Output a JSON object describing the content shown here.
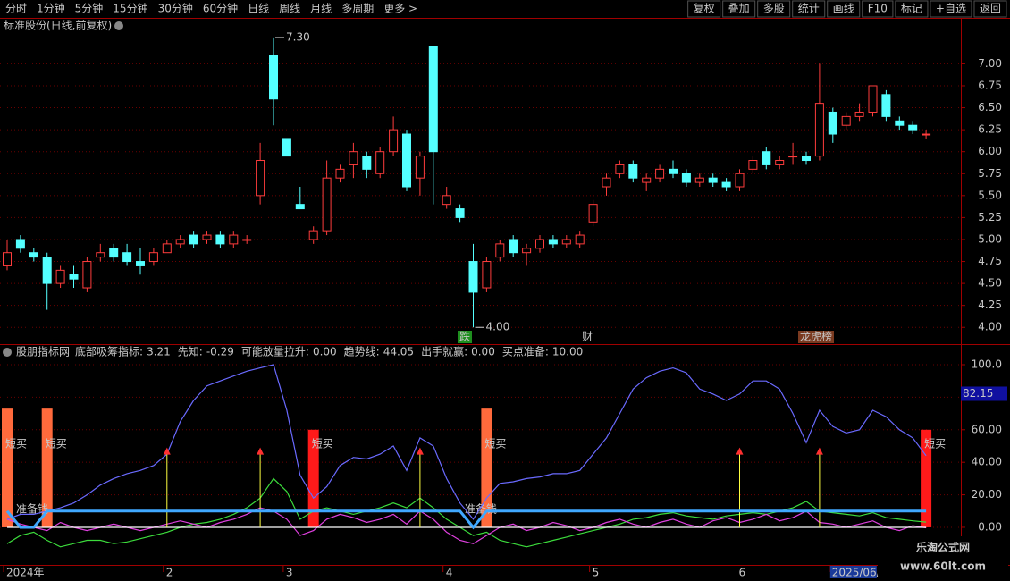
{
  "toolbar": {
    "left": [
      "分时",
      "1分钟",
      "5分钟",
      "15分钟",
      "30分钟",
      "60分钟",
      "日线",
      "周线",
      "月线",
      "多周期",
      "更多 >"
    ],
    "right": [
      "复权",
      "叠加",
      "多股",
      "统计",
      "画线",
      "F10",
      "标记",
      "+自选",
      "返回"
    ]
  },
  "watermark": {
    "title": "乐淘公式网",
    "url": "www.60lt.com"
  },
  "chart_data": [
    {
      "type": "candlestick",
      "title": "标准股份(日线,前复权)",
      "open": [
        4.7,
        5.0,
        4.85,
        4.8,
        4.5,
        4.6,
        4.45,
        4.8,
        4.9,
        4.85,
        4.75,
        4.75,
        4.85,
        4.95,
        5.05,
        5.0,
        5.05,
        4.95,
        5.0,
        5.5,
        7.1,
        6.15,
        5.4,
        5.0,
        5.1,
        5.7,
        5.85,
        5.95,
        5.75,
        6.0,
        6.2,
        5.7,
        7.2,
        5.4,
        5.35,
        4.75,
        4.45,
        4.8,
        5.0,
        4.85,
        4.9,
        5.0,
        4.95,
        4.95,
        5.2,
        5.6,
        5.75,
        5.85,
        5.65,
        5.7,
        5.8,
        5.75,
        5.65,
        5.7,
        5.65,
        5.6,
        5.8,
        6.0,
        5.85,
        5.95,
        5.95,
        5.95,
        6.45,
        6.3,
        6.4,
        6.45,
        6.65,
        6.35,
        6.3,
        6.2
      ],
      "high": [
        5.0,
        5.05,
        4.9,
        4.85,
        4.7,
        4.7,
        4.8,
        4.95,
        4.95,
        4.95,
        4.9,
        4.9,
        5.0,
        5.05,
        5.1,
        5.1,
        5.1,
        5.1,
        5.05,
        6.1,
        7.3,
        6.15,
        5.6,
        5.15,
        5.9,
        5.85,
        6.1,
        6.0,
        6.05,
        6.4,
        6.25,
        6.0,
        7.2,
        5.6,
        5.4,
        4.95,
        4.8,
        5.0,
        5.05,
        4.95,
        5.05,
        5.05,
        5.05,
        5.1,
        5.45,
        5.75,
        5.9,
        5.9,
        5.75,
        5.85,
        5.9,
        5.8,
        5.75,
        5.75,
        5.7,
        5.8,
        5.95,
        6.05,
        5.95,
        6.1,
        6.0,
        7.0,
        6.5,
        6.45,
        6.55,
        6.75,
        6.7,
        6.4,
        6.35,
        6.25
      ],
      "low": [
        4.65,
        4.85,
        4.75,
        4.2,
        4.45,
        4.45,
        4.4,
        4.75,
        4.75,
        4.7,
        4.6,
        4.7,
        4.85,
        4.9,
        4.9,
        4.95,
        4.9,
        4.9,
        4.95,
        5.4,
        6.3,
        5.95,
        5.35,
        4.95,
        5.05,
        5.65,
        5.7,
        5.7,
        5.7,
        5.95,
        5.55,
        5.5,
        5.4,
        5.35,
        5.2,
        4.0,
        4.4,
        4.75,
        4.8,
        4.7,
        4.85,
        4.9,
        4.9,
        4.9,
        5.15,
        5.5,
        5.7,
        5.65,
        5.55,
        5.65,
        5.7,
        5.6,
        5.6,
        5.6,
        5.55,
        5.55,
        5.75,
        5.8,
        5.8,
        5.85,
        5.85,
        5.9,
        6.1,
        6.25,
        6.35,
        6.4,
        6.35,
        6.25,
        6.2,
        6.15
      ],
      "close": [
        4.85,
        4.9,
        4.8,
        4.5,
        4.65,
        4.55,
        4.75,
        4.85,
        4.8,
        4.75,
        4.7,
        4.85,
        4.95,
        5.0,
        4.95,
        5.05,
        4.95,
        5.05,
        5.0,
        5.9,
        6.6,
        5.95,
        5.35,
        5.1,
        5.7,
        5.8,
        6.0,
        5.8,
        6.0,
        6.25,
        5.6,
        5.95,
        6.0,
        5.5,
        5.25,
        4.4,
        4.75,
        4.95,
        4.85,
        4.9,
        5.0,
        4.95,
        5.0,
        5.05,
        5.4,
        5.7,
        5.85,
        5.7,
        5.7,
        5.8,
        5.75,
        5.65,
        5.7,
        5.65,
        5.6,
        5.75,
        5.9,
        5.85,
        5.9,
        5.95,
        5.9,
        6.55,
        6.2,
        6.4,
        6.45,
        6.75,
        6.4,
        6.3,
        6.25,
        6.2
      ],
      "up_color": "#ff3c3c",
      "down_color": "#54ffff",
      "ylim": [
        3.86,
        7.34
      ],
      "yticks": [
        {
          "value": 4,
          "label": "4.00"
        },
        {
          "value": 4.25,
          "label": "4.25"
        },
        {
          "value": 4.5,
          "label": "4.50"
        },
        {
          "value": 4.75,
          "label": "4.75"
        },
        {
          "value": 5,
          "label": "5.00"
        },
        {
          "value": 5.25,
          "label": "5.25"
        },
        {
          "value": 5.5,
          "label": "5.50"
        },
        {
          "value": 5.75,
          "label": "5.75"
        },
        {
          "value": 6,
          "label": "6.00"
        },
        {
          "value": 6.25,
          "label": "6.25"
        },
        {
          "value": 6.5,
          "label": "6.50"
        },
        {
          "value": 6.75,
          "label": "6.75"
        },
        {
          "value": 7,
          "label": "7.00"
        }
      ],
      "grid": true,
      "annotations": [
        {
          "value": 7.3,
          "label": "7.30"
        },
        {
          "value": 4,
          "label": "4.00"
        }
      ],
      "events": [
        "跌",
        "财",
        "龙虎榜"
      ]
    },
    {
      "type": "line",
      "title": "股朋指标网",
      "series": [
        {
          "name": "底部吸筹指标:",
          "legend_value": "3.21",
          "color": "#3cdc3c",
          "values": [
            -10,
            -5,
            -3,
            -8,
            -12,
            -10,
            -8,
            -8,
            -10,
            -9,
            -7,
            -5,
            -3,
            0,
            2,
            3,
            5,
            8,
            12,
            18,
            30,
            22,
            5,
            10,
            12,
            10,
            8,
            10,
            12,
            15,
            12,
            18,
            12,
            5,
            0,
            -5,
            -3,
            -8,
            -10,
            -12,
            -10,
            -8,
            -6,
            -4,
            -2,
            0,
            2,
            5,
            6,
            8,
            9,
            7,
            6,
            5,
            7,
            8,
            9,
            8,
            10,
            12,
            16,
            10,
            9,
            8,
            7,
            9,
            6,
            5,
            4,
            3.21
          ]
        },
        {
          "name": "先知:",
          "legend_value": "-0.29",
          "color": "#e040e0",
          "values": [
            5,
            2,
            0,
            -2,
            3,
            0,
            -2,
            0,
            2,
            0,
            -2,
            0,
            2,
            4,
            2,
            0,
            3,
            5,
            8,
            12,
            10,
            5,
            -5,
            -2,
            5,
            8,
            6,
            3,
            5,
            8,
            2,
            10,
            5,
            -3,
            -8,
            -10,
            -5,
            0,
            2,
            -2,
            0,
            3,
            1,
            -2,
            0,
            3,
            5,
            2,
            0,
            3,
            5,
            2,
            0,
            4,
            6,
            3,
            5,
            8,
            4,
            6,
            10,
            3,
            2,
            0,
            2,
            4,
            0,
            -2,
            1,
            -0.29
          ]
        },
        {
          "name": "可能放量拉升:",
          "legend_value": "0.00",
          "color": "#ffffff",
          "values": [
            0,
            0,
            0,
            0,
            0,
            0,
            0,
            0,
            0,
            0,
            0,
            0,
            0,
            0,
            0,
            0,
            0,
            0,
            0,
            0,
            0,
            0,
            0,
            0,
            0,
            0,
            0,
            0,
            0,
            0,
            0,
            0,
            0,
            0,
            0,
            0,
            0,
            0,
            0,
            0,
            0,
            0,
            0,
            0,
            0,
            0,
            0,
            0,
            0,
            0,
            0,
            0,
            0,
            0,
            0,
            0,
            0,
            0,
            0,
            0,
            0,
            0,
            0,
            0,
            0,
            0,
            0,
            0,
            0,
            0
          ]
        },
        {
          "name": "趋势线:",
          "legend_value": "44.05",
          "color": "#6a6aff",
          "values": [
            5,
            8,
            8,
            10,
            12,
            15,
            20,
            26,
            30,
            33,
            35,
            38,
            45,
            65,
            78,
            87,
            90,
            93,
            96,
            98,
            100,
            72,
            32,
            18,
            25,
            38,
            43,
            42,
            45,
            50,
            35,
            55,
            50,
            30,
            15,
            5,
            18,
            27,
            28,
            30,
            31,
            33,
            33,
            35,
            45,
            55,
            70,
            85,
            92,
            96,
            98,
            95,
            85,
            82,
            78,
            82,
            90,
            90,
            85,
            70,
            52,
            72,
            62,
            58,
            60,
            72,
            68,
            60,
            55,
            44.05
          ]
        },
        {
          "name": "出手就赢:",
          "legend_value": "0.00",
          "color": "#ffff40",
          "style": "arrow",
          "values": [
            0,
            0,
            0,
            0,
            0,
            0,
            0,
            0,
            0,
            0,
            0,
            0,
            48,
            0,
            0,
            0,
            0,
            0,
            0,
            48,
            0,
            0,
            0,
            0,
            0,
            0,
            0,
            0,
            0,
            0,
            0,
            48,
            0,
            0,
            0,
            0,
            0,
            0,
            0,
            0,
            0,
            0,
            0,
            0,
            0,
            0,
            0,
            0,
            0,
            0,
            0,
            0,
            0,
            0,
            0,
            48,
            0,
            0,
            0,
            0,
            0,
            48,
            0,
            0,
            0,
            0,
            0,
            0,
            0,
            0
          ]
        },
        {
          "name": "买点准备:",
          "legend_value": "10.00",
          "color": "#40a8ff",
          "width": 3,
          "values": [
            10,
            0,
            0,
            10,
            10,
            10,
            10,
            10,
            10,
            10,
            10,
            10,
            10,
            10,
            10,
            10,
            10,
            10,
            10,
            10,
            10,
            10,
            10,
            10,
            10,
            10,
            10,
            10,
            10,
            10,
            10,
            10,
            10,
            10,
            10,
            0,
            10,
            10,
            10,
            10,
            10,
            10,
            10,
            10,
            10,
            10,
            10,
            10,
            10,
            10,
            10,
            10,
            10,
            10,
            10,
            10,
            10,
            10,
            10,
            10,
            10,
            10,
            10,
            10,
            10,
            10,
            10,
            10,
            10,
            10
          ]
        }
      ],
      "bars": [
        {
          "label": "短买",
          "color": "#ff6a3c",
          "values": [
            73,
            null,
            null,
            73,
            null,
            null,
            null,
            null,
            null,
            null,
            null,
            null,
            null,
            null,
            null,
            null,
            null,
            null,
            null,
            null,
            null,
            null,
            null,
            null,
            null,
            null,
            null,
            null,
            null,
            null,
            null,
            null,
            null,
            null,
            null,
            null,
            73,
            null,
            null,
            null,
            null,
            null,
            null,
            null,
            null,
            null,
            null,
            null,
            null,
            null,
            null,
            null,
            null,
            null,
            null,
            null,
            null,
            null,
            null,
            null,
            null,
            null,
            null,
            null,
            null,
            null,
            null,
            null,
            null,
            null
          ]
        },
        {
          "label": "短买",
          "color": "#ff1a1a",
          "values": [
            null,
            null,
            null,
            null,
            null,
            null,
            null,
            null,
            null,
            null,
            null,
            null,
            null,
            null,
            null,
            null,
            null,
            null,
            null,
            null,
            null,
            null,
            null,
            60,
            null,
            null,
            null,
            null,
            null,
            null,
            null,
            null,
            null,
            null,
            null,
            null,
            null,
            null,
            null,
            null,
            null,
            null,
            null,
            null,
            null,
            null,
            null,
            null,
            null,
            null,
            null,
            null,
            null,
            null,
            null,
            null,
            null,
            null,
            null,
            null,
            null,
            null,
            null,
            null,
            null,
            null,
            null,
            null,
            null,
            60
          ]
        }
      ],
      "annotations": [
        "准备钱",
        "准备钱"
      ],
      "axis_marker": 82.15,
      "ylim": [
        -22,
        105.5
      ],
      "yticks": [
        {
          "value": 0,
          "label": "0.00"
        },
        {
          "value": 20,
          "label": "20.00"
        },
        {
          "value": 40,
          "label": "40.00"
        },
        {
          "value": 60,
          "label": "60.00"
        },
        {
          "value": 80,
          "label": "80.00"
        },
        {
          "value": 100,
          "label": "100.0"
        }
      ],
      "grid": true,
      "xticks": [
        {
          "value": 0,
          "label": "2024年"
        },
        {
          "value": 12,
          "label": "2"
        },
        {
          "value": 21,
          "label": "3"
        },
        {
          "value": 33,
          "label": "4"
        },
        {
          "value": 44,
          "label": "5"
        },
        {
          "value": 55,
          "label": "6"
        },
        {
          "value": 62,
          "label": "2025/06/"
        }
      ]
    }
  ]
}
